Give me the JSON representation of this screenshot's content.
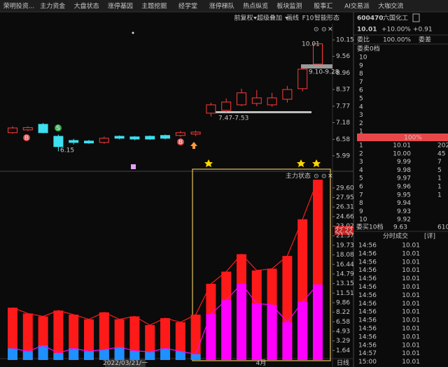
{
  "tabs": [
    "荣明投资...",
    "主力资金",
    "大盘状态",
    "涨停基因",
    "主题挖掘",
    "经学堂",
    "涨停梯队",
    "热点纵览",
    "板块监测",
    "股事汇",
    "AI交易派",
    "大咖交流"
  ],
  "toolbar": [
    "前复权",
    "超级叠加",
    "画线",
    "F10",
    "智能形态"
  ],
  "quote": {
    "code": "600470",
    "name": "六国化工",
    "price": "10.01",
    "change_pct": "+10.00%",
    "change": "+0.91"
  },
  "order_book": {
    "ratio_label": "委比",
    "ratio": "100.00%",
    "diff_label": "委差",
    "sell_title": "委卖0档",
    "sell_levels": [
      "10",
      "9",
      "8",
      "7",
      "6",
      "5",
      "4",
      "3",
      "2",
      "1"
    ],
    "meter": "100%",
    "buy": [
      [
        "1",
        "10.01",
        "202"
      ],
      [
        "2",
        "10.00",
        "45"
      ],
      [
        "3",
        "9.99",
        "7"
      ],
      [
        "4",
        "9.98",
        "5"
      ],
      [
        "5",
        "9.97",
        "1"
      ],
      [
        "6",
        "9.96",
        "1"
      ],
      [
        "7",
        "9.95",
        "1"
      ],
      [
        "8",
        "9.94",
        ""
      ],
      [
        "9",
        "9.93",
        ""
      ],
      [
        "10",
        "9.92",
        ""
      ]
    ],
    "buy_title": "委买10档",
    "buy_avg": "9.63",
    "buy_total": "610"
  },
  "trades": {
    "title": "分时成交",
    "detail": "[详]",
    "rows": [
      [
        "14:56",
        "10.01"
      ],
      [
        "14:56",
        "10.01"
      ],
      [
        "14:56",
        "10.01"
      ],
      [
        "14:56",
        "10.01"
      ],
      [
        "14:56",
        "10.01"
      ],
      [
        "14:56",
        "10.01"
      ],
      [
        "14:56",
        "10.01"
      ],
      [
        "14:56",
        "10.01"
      ],
      [
        "14:56",
        "10.01"
      ],
      [
        "14:56",
        "10.01"
      ],
      [
        "14:56",
        "10.01"
      ],
      [
        "14:56",
        "10.01"
      ],
      [
        "14:56",
        "10.01"
      ],
      [
        "14:57",
        "10.01"
      ],
      [
        "15:00",
        "10.01"
      ]
    ]
  },
  "kline": {
    "ylim": [
      5.51,
      10.73
    ],
    "yticks": [
      10.15,
      9.56,
      8.96,
      8.37,
      7.77,
      7.18,
      6.58,
      5.99
    ],
    "open": [
      6.82,
      6.92,
      7.12,
      6.69,
      6.54,
      6.52,
      6.47,
      6.69,
      6.67,
      6.69,
      6.72,
      6.72,
      6.77,
      7.52,
      7.62,
      7.82,
      7.87,
      7.82,
      8.02,
      8.4,
      9.28
    ],
    "high": [
      7.05,
      7.05,
      7.17,
      6.75,
      6.6,
      6.56,
      6.68,
      6.72,
      6.7,
      6.72,
      6.75,
      6.88,
      6.9,
      7.9,
      8.05,
      8.4,
      8.35,
      8.25,
      8.5,
      9.15,
      10.01
    ],
    "low": [
      6.78,
      6.88,
      6.8,
      6.15,
      6.4,
      6.42,
      6.42,
      6.58,
      6.55,
      6.56,
      6.58,
      6.68,
      6.7,
      7.4,
      7.55,
      7.77,
      7.77,
      7.75,
      7.9,
      8.3,
      9.28
    ],
    "close": [
      6.99,
      7.0,
      6.82,
      6.32,
      6.47,
      6.45,
      6.62,
      6.62,
      6.59,
      6.59,
      6.62,
      6.82,
      6.84,
      7.82,
      7.92,
      8.25,
      8.07,
      8.07,
      8.37,
      9.1,
      10.01
    ],
    "up_color": "#ff3b3b",
    "down_color": "#3de0f0",
    "annotations": {
      "limit": "10.01",
      "gap_high": "9.10-9.28",
      "gap_low": "7.47-7.53",
      "low": "6.15"
    },
    "signals": [
      "B",
      "S",
      "B"
    ]
  },
  "flow": {
    "title": "主力状态",
    "ylim": [
      0,
      32.1
    ],
    "yticks": [
      {
        "value": 29.6,
        "label": "29.60"
      },
      27.95,
      26.31,
      24.66,
      23.02,
      21.37,
      19.73,
      18.08,
      16.44,
      14.79,
      13.15,
      11.51,
      9.86,
      8.22,
      6.58,
      4.93,
      3.29,
      1.64
    ],
    "current": 22.22,
    "total": [
      9.0,
      8.0,
      7.5,
      8.5,
      7.8,
      7.0,
      8.2,
      7.0,
      7.5,
      6.0,
      7.2,
      6.5,
      7.8,
      13.1,
      15.2,
      18.2,
      15.4,
      15.7,
      17.9,
      24.2,
      31.0
    ],
    "inner": [
      2.0,
      1.5,
      2.5,
      1.2,
      2.0,
      1.5,
      1.8,
      2.2,
      1.6,
      1.4,
      2.0,
      1.5,
      1.0,
      7.9,
      10.3,
      13.1,
      9.7,
      9.5,
      6.5,
      10.0,
      13.0
    ],
    "total_color": "#ff1a1a",
    "inner_colors": [
      "#1e90ff",
      "#1e90ff",
      "#1e90ff",
      "#1e90ff",
      "#1e90ff",
      "#1e90ff",
      "#1e90ff",
      "#1e90ff",
      "#1e90ff",
      "#1e90ff",
      "#1e90ff",
      "#1e90ff",
      "#1e90ff",
      "#ff00ff",
      "#ff00ff",
      "#ff00ff",
      "#ff00ff",
      "#ff00ff",
      "#ff00ff",
      "#ff00ff",
      "#ff00ff"
    ],
    "x_labels": [
      "2022/03/21/一",
      "4月"
    ],
    "period": "日线"
  }
}
